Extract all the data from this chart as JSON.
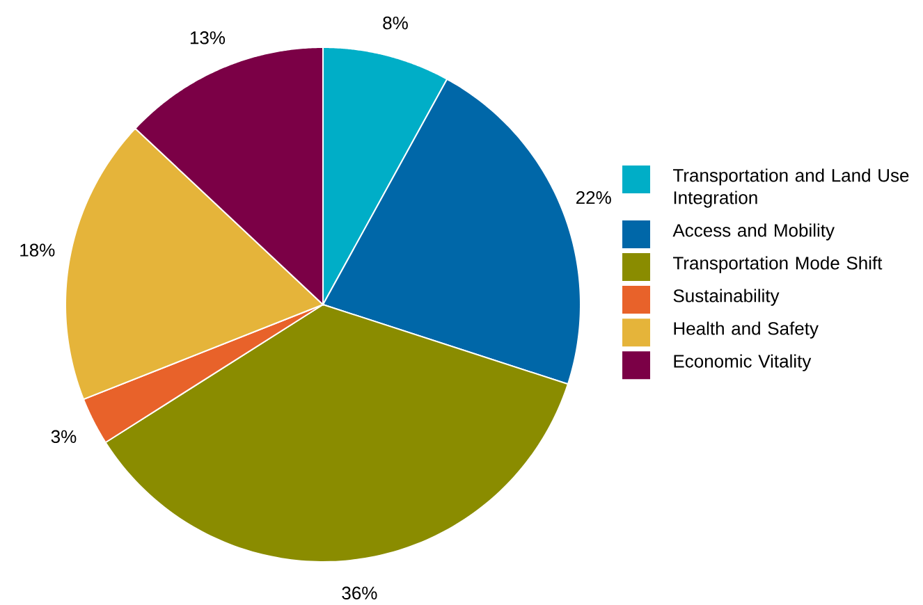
{
  "chart_data": {
    "type": "pie",
    "categories": [
      "Transportation and Land Use Integration",
      "Access and Mobility",
      "Transportation Mode Shift",
      "Sustainability",
      "Health and Safety",
      "Economic Vitality"
    ],
    "values": [
      8,
      22,
      36,
      3,
      18,
      13
    ],
    "colors": [
      "#00aec7",
      "#0067a8",
      "#8a8c00",
      "#e8622a",
      "#e5b43a",
      "#7b0046"
    ],
    "value_labels": [
      "8%",
      "22%",
      "36%",
      "3%",
      "18%",
      "13%"
    ],
    "legend": "right"
  }
}
